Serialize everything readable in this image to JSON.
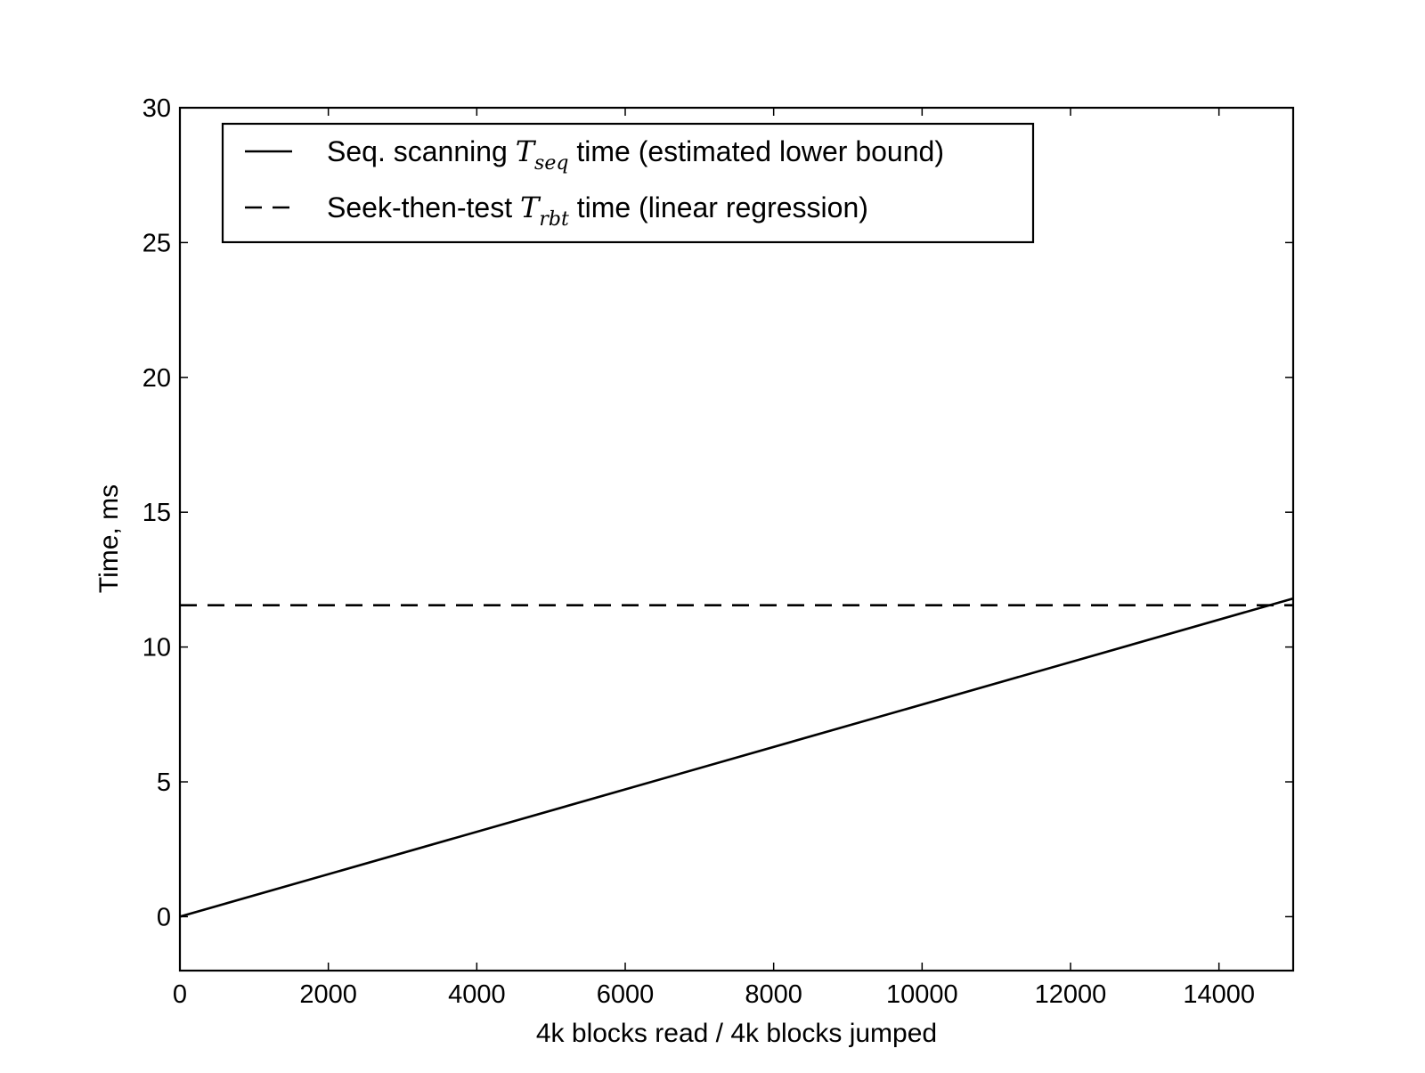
{
  "chart_data": {
    "type": "line",
    "title": "",
    "xlabel": "4k blocks read / 4k blocks jumped",
    "ylabel": "Time, ms",
    "xlim": [
      0,
      15000
    ],
    "ylim": [
      -2,
      30
    ],
    "x_ticks": [
      0,
      2000,
      4000,
      6000,
      8000,
      10000,
      12000,
      14000
    ],
    "y_ticks": [
      0,
      5,
      10,
      15,
      20,
      25,
      30
    ],
    "grid": false,
    "legend_position": "top-left",
    "series": [
      {
        "name": "Seq. scanning T_seq time (estimated lower bound)",
        "legend": {
          "before": "Seq. scanning ",
          "symbol": "T",
          "subscript": "seq",
          "after": " time (estimated lower bound)"
        },
        "line_style": "solid",
        "color": "#000000",
        "points": [
          [
            0,
            0
          ],
          [
            15000,
            11.8
          ]
        ]
      },
      {
        "name": "Seek-then-test T_rbt time (linear regression)",
        "legend": {
          "before": "Seek-then-test ",
          "symbol": "T",
          "subscript": "rbt",
          "after": " time (linear regression)"
        },
        "line_style": "dashed",
        "color": "#000000",
        "points": [
          [
            0,
            11.55
          ],
          [
            15000,
            11.55
          ]
        ]
      }
    ]
  }
}
